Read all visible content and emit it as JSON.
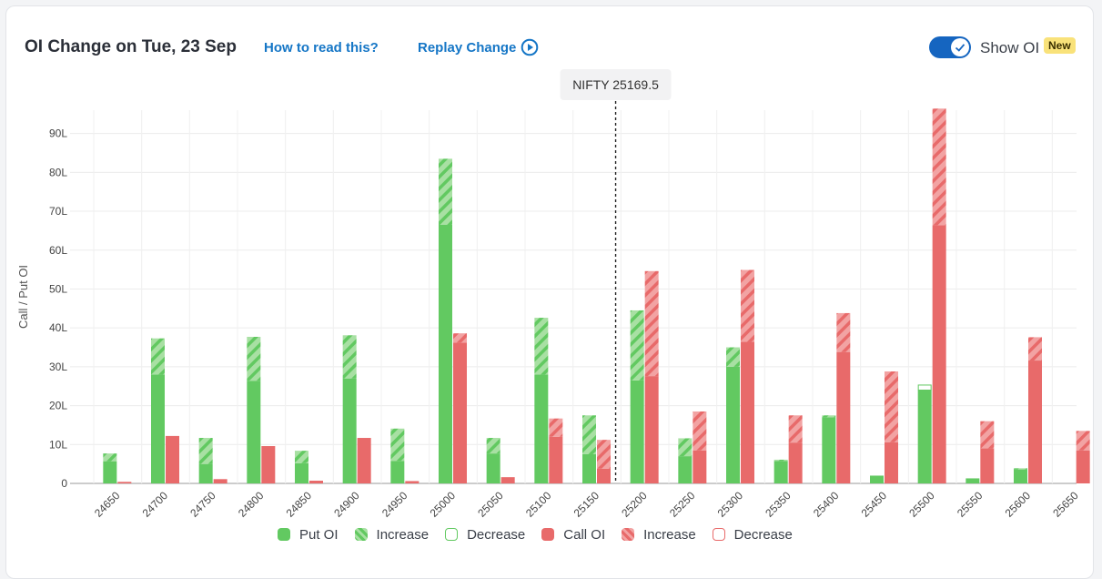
{
  "header": {
    "title": "OI Change on Tue, 23 Sep",
    "how_link": "How to read this?",
    "replay_link": "Replay Change",
    "toggle_label": "Show OI",
    "badge": "New"
  },
  "spot_label": "NIFTY 25169.5",
  "colors": {
    "put": "#62c961",
    "put_increase": "#a8e0a3",
    "call": "#e86a6a",
    "call_increase": "#f2a3a3",
    "accent": "#1576c6"
  },
  "chart_data": {
    "type": "bar",
    "ylabel": "Call / Put OI",
    "y_unit": "L",
    "ylim": [
      0,
      96
    ],
    "y_ticks": [
      "0",
      "10L",
      "20L",
      "30L",
      "40L",
      "50L",
      "60L",
      "70L",
      "80L",
      "90L"
    ],
    "spot": 25169.5,
    "categories": [
      "24650",
      "24700",
      "24750",
      "24800",
      "24850",
      "24900",
      "24950",
      "25000",
      "25050",
      "25100",
      "25150",
      "25200",
      "25250",
      "25300",
      "25350",
      "25400",
      "25450",
      "25500",
      "25550",
      "25600",
      "25650"
    ],
    "series": [
      {
        "name": "Put OI",
        "base": [
          5.7,
          28,
          5,
          26.4,
          5.2,
          27,
          5.8,
          66.5,
          7.7,
          28,
          7.5,
          26.5,
          7,
          30,
          5.8,
          17,
          2,
          24,
          1.3,
          3.6,
          0
        ],
        "increase": [
          2,
          9.3,
          6.7,
          11.3,
          3.2,
          11.1,
          8.3,
          17,
          4,
          14.6,
          10,
          18,
          4.6,
          5,
          0.3,
          0.5,
          0,
          0,
          0,
          0.3,
          0
        ],
        "decrease": [
          0,
          0,
          0,
          0,
          0,
          0,
          0,
          0,
          0,
          0,
          0,
          0,
          0,
          0,
          0,
          0,
          0,
          1.3,
          0,
          0,
          0
        ]
      },
      {
        "name": "Call OI",
        "base": [
          0.4,
          12.2,
          1.1,
          9.6,
          0.7,
          11.7,
          0.6,
          36.2,
          1.6,
          12,
          3.8,
          27.6,
          8.5,
          36.4,
          10.5,
          33.8,
          10.6,
          66.4,
          9,
          31.6,
          8.5
        ],
        "increase": [
          0,
          0,
          0,
          0,
          0,
          0,
          0,
          2.4,
          0,
          4.7,
          7.4,
          27,
          10,
          18.5,
          7,
          10,
          18.2,
          30,
          7,
          6,
          5
        ],
        "decrease": [
          0,
          0,
          0,
          0,
          0,
          0,
          0,
          0,
          0,
          0,
          0,
          0,
          0,
          0,
          0,
          0,
          0,
          0,
          0,
          0,
          0
        ]
      }
    ],
    "legend": [
      "Put OI",
      "Increase",
      "Decrease",
      "Call OI",
      "Increase",
      "Decrease"
    ],
    "grid": true
  }
}
